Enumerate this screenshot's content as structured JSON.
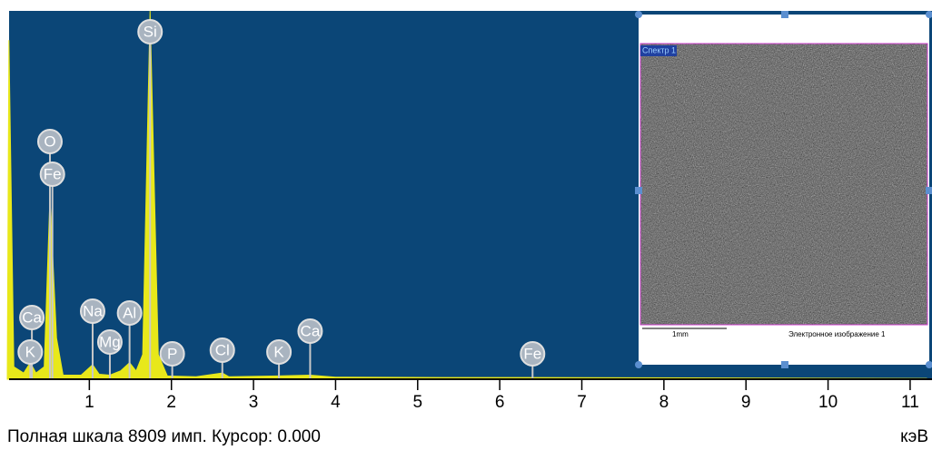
{
  "chart_data": {
    "type": "area",
    "color": "#e8e81a",
    "x": [
      0.0,
      0.02,
      0.08,
      0.2,
      0.28,
      0.35,
      0.45,
      0.52,
      0.6,
      0.68,
      0.9,
      1.04,
      1.12,
      1.25,
      1.38,
      1.49,
      1.57,
      1.65,
      1.74,
      1.84,
      1.95,
      2.3,
      2.62,
      2.7,
      3.3,
      3.69,
      4.0,
      5.3,
      6.4,
      11.2
    ],
    "values": [
      0,
      8200,
      300,
      150,
      400,
      150,
      300,
      4400,
      1000,
      100,
      100,
      350,
      120,
      100,
      200,
      400,
      200,
      600,
      8909,
      600,
      80,
      60,
      150,
      60,
      80,
      100,
      50,
      40,
      40,
      20
    ],
    "xlim": [
      0,
      11.2
    ],
    "ylim": [
      0,
      8909
    ],
    "xticks": [
      1,
      2,
      3,
      4,
      5,
      6,
      7,
      8,
      9,
      10,
      11
    ],
    "x_label": "кэВ",
    "footer": "Полная шкала 8909 имп. Курсор: 0.000",
    "annotations": [
      {
        "label": "Ca",
        "x": 0.3
      },
      {
        "label": "K",
        "x": 0.28
      },
      {
        "label": "O",
        "x": 0.52
      },
      {
        "label": "Fe",
        "x": 0.55
      },
      {
        "label": "Na",
        "x": 1.04
      },
      {
        "label": "Mg",
        "x": 1.25
      },
      {
        "label": "Al",
        "x": 1.49
      },
      {
        "label": "Si",
        "x": 1.74
      },
      {
        "label": "P",
        "x": 2.01
      },
      {
        "label": "Cl",
        "x": 2.62
      },
      {
        "label": "K",
        "x": 3.31
      },
      {
        "label": "Ca",
        "x": 3.69
      },
      {
        "label": "Fe",
        "x": 6.4
      }
    ],
    "inset": {
      "tag": "Спектр 1",
      "scale": "1mm",
      "caption": "Электронное изображение 1"
    }
  }
}
